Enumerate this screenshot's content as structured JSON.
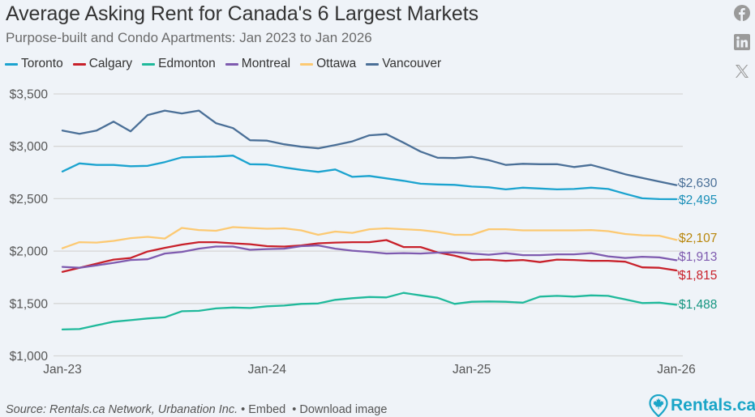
{
  "header": {
    "title": "Average Asking Rent for Canada's 6 Largest Markets",
    "subtitle": "Purpose-built and Condo Apartments: Jan 2023 to Jan 2026"
  },
  "social": [
    {
      "name": "facebook-icon",
      "label": "Facebook"
    },
    {
      "name": "linkedin-icon",
      "label": "LinkedIn"
    },
    {
      "name": "x-icon",
      "label": "X"
    }
  ],
  "footer": {
    "source": "Source: Rentals.ca Network, Urbanation Inc.",
    "separator": "•",
    "embed": "Embed",
    "download": "Download image",
    "brand": "Rentals.ca"
  },
  "chart_data": {
    "type": "line",
    "title": "Average Asking Rent for Canada's 6 Largest Markets",
    "subtitle": "Purpose-built and Condo Apartments: Jan 2023 to Jan 2026",
    "xlabel": "",
    "ylabel": "",
    "ylim": [
      1000,
      3500
    ],
    "yticks": [
      1000,
      1500,
      2000,
      2500,
      3000,
      3500
    ],
    "ytick_labels": [
      "$1,000",
      "$1,500",
      "$2,000",
      "$2,500",
      "$3,000",
      "$3,500"
    ],
    "x": [
      "Jan-23",
      "Feb-23",
      "Mar-23",
      "Apr-23",
      "May-23",
      "Jun-23",
      "Jul-23",
      "Aug-23",
      "Sep-23",
      "Oct-23",
      "Nov-23",
      "Dec-23",
      "Jan-24",
      "Feb-24",
      "Mar-24",
      "Apr-24",
      "May-24",
      "Jun-24",
      "Jul-24",
      "Aug-24",
      "Sep-24",
      "Oct-24",
      "Nov-24",
      "Dec-24",
      "Jan-25",
      "Feb-25",
      "Mar-25",
      "Apr-25",
      "May-25",
      "Jun-25",
      "Jul-25",
      "Aug-25",
      "Sep-25",
      "Oct-25",
      "Nov-25",
      "Dec-25",
      "Jan-26"
    ],
    "xtick_labels": [
      "Jan-23",
      "Jan-24",
      "Jan-25",
      "Jan-26"
    ],
    "grid": true,
    "legend_position": "top-left",
    "series": [
      {
        "name": "Toronto",
        "color": "#1ba3cf",
        "label_color": "#1a8fb8",
        "end_label": "$2,495",
        "values": [
          2760,
          2837,
          2822,
          2822,
          2810,
          2814,
          2849,
          2895,
          2899,
          2903,
          2911,
          2829,
          2826,
          2798,
          2775,
          2756,
          2779,
          2709,
          2717,
          2694,
          2671,
          2643,
          2636,
          2632,
          2616,
          2609,
          2589,
          2605,
          2597,
          2589,
          2593,
          2605,
          2593,
          2547,
          2504,
          2496,
          2495
        ]
      },
      {
        "name": "Calgary",
        "color": "#c8202a",
        "label_color": "#c8202a",
        "end_label": "$1,815",
        "values": [
          1802,
          1841,
          1880,
          1919,
          1934,
          1996,
          2031,
          2062,
          2085,
          2085,
          2074,
          2066,
          2047,
          2043,
          2054,
          2074,
          2081,
          2085,
          2085,
          2105,
          2039,
          2039,
          1988,
          1957,
          1915,
          1919,
          1907,
          1915,
          1895,
          1919,
          1915,
          1907,
          1907,
          1899,
          1845,
          1841,
          1815
        ]
      },
      {
        "name": "Edmonton",
        "color": "#1fb99b",
        "label_color": "#149580",
        "end_label": "$1,488",
        "values": [
          1252,
          1256,
          1291,
          1326,
          1341,
          1357,
          1368,
          1426,
          1430,
          1453,
          1461,
          1457,
          1473,
          1480,
          1496,
          1500,
          1535,
          1550,
          1562,
          1558,
          1601,
          1577,
          1554,
          1496,
          1516,
          1519,
          1516,
          1508,
          1566,
          1573,
          1566,
          1577,
          1573,
          1539,
          1504,
          1508,
          1488
        ]
      },
      {
        "name": "Montreal",
        "color": "#7e5aaf",
        "label_color": "#7e5aaf",
        "end_label": "$1,913",
        "values": [
          1849,
          1841,
          1864,
          1888,
          1915,
          1922,
          1977,
          1992,
          2023,
          2043,
          2043,
          2012,
          2019,
          2023,
          2047,
          2054,
          2023,
          2004,
          1992,
          1977,
          1981,
          1977,
          1985,
          1988,
          1977,
          1965,
          1981,
          1961,
          1961,
          1969,
          1969,
          1981,
          1950,
          1934,
          1946,
          1940,
          1913
        ]
      },
      {
        "name": "Ottawa",
        "color": "#fcc972",
        "label_color": "#b8860b",
        "end_label": "$2,107",
        "values": [
          2027,
          2085,
          2081,
          2097,
          2124,
          2136,
          2120,
          2221,
          2201,
          2194,
          2229,
          2221,
          2213,
          2217,
          2198,
          2155,
          2186,
          2174,
          2209,
          2217,
          2209,
          2201,
          2182,
          2155,
          2155,
          2209,
          2209,
          2198,
          2198,
          2198,
          2198,
          2201,
          2190,
          2163,
          2151,
          2147,
          2107
        ]
      },
      {
        "name": "Vancouver",
        "color": "#4a6f97",
        "label_color": "#4a6f97",
        "end_label": "$2,630",
        "values": [
          3151,
          3120,
          3151,
          3236,
          3143,
          3298,
          3341,
          3314,
          3341,
          3221,
          3174,
          3058,
          3054,
          3019,
          2996,
          2981,
          3012,
          3047,
          3105,
          3116,
          3035,
          2950,
          2891,
          2888,
          2899,
          2868,
          2822,
          2833,
          2829,
          2829,
          2802,
          2822,
          2779,
          2733,
          2698,
          2663,
          2630
        ]
      }
    ]
  }
}
